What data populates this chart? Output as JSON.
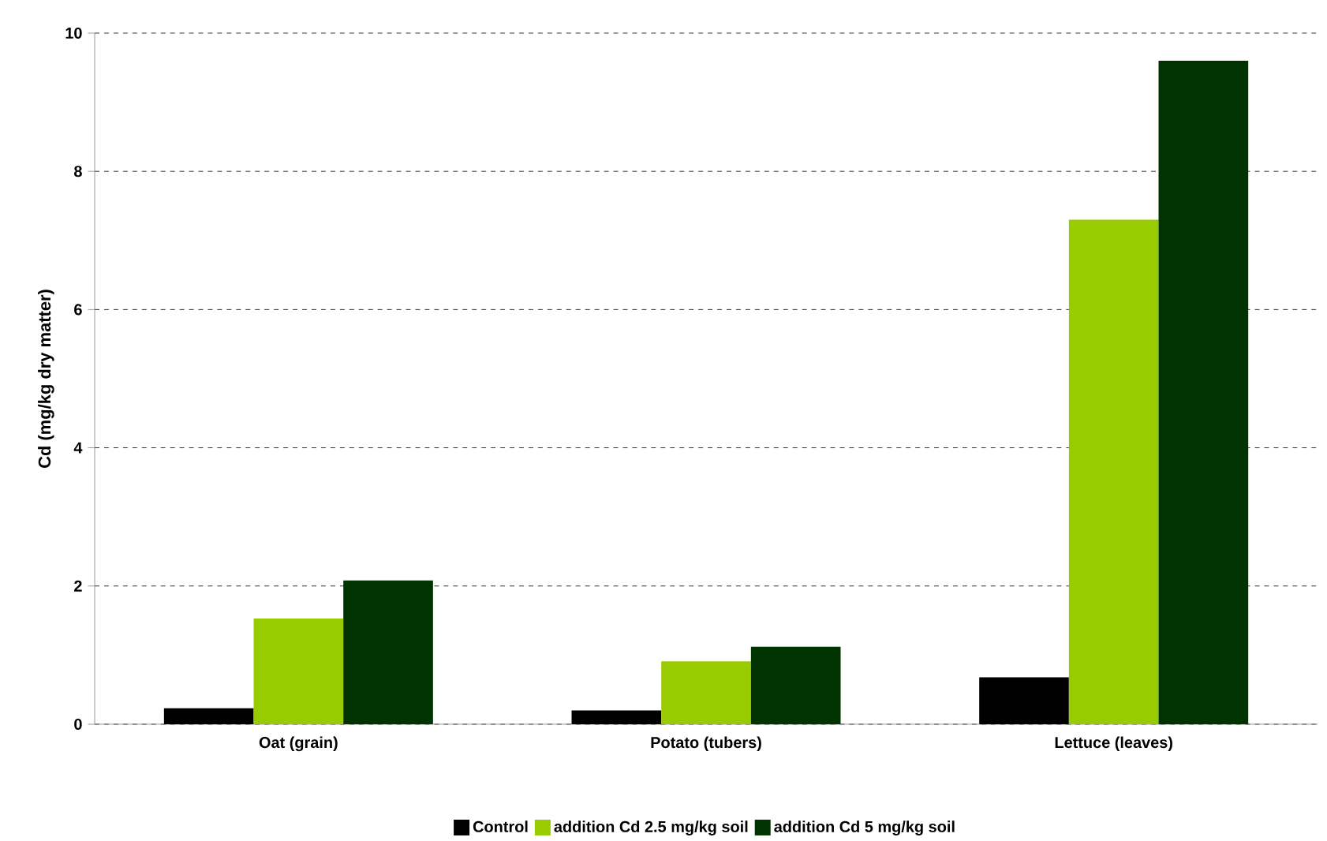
{
  "chart_data": {
    "type": "bar",
    "ylabel": "Cd (mg/kg dry matter)",
    "categories": [
      "Oat (grain)",
      "Potato (tubers)",
      "Lettuce (leaves)"
    ],
    "series": [
      {
        "name": "Control",
        "color": "#000000",
        "values": [
          0.23,
          0.2,
          0.68
        ]
      },
      {
        "name": "addition Cd 2.5 mg/kg soil",
        "color": "#99cc00",
        "values": [
          1.53,
          0.91,
          7.3
        ]
      },
      {
        "name": "addition Cd 5 mg/kg soil",
        "color": "#003300",
        "values": [
          2.08,
          1.12,
          9.6
        ]
      }
    ],
    "ylim": [
      0,
      10
    ],
    "yticks": [
      0,
      2,
      4,
      6,
      8,
      10
    ],
    "grid": "y",
    "legend": "bottom"
  }
}
